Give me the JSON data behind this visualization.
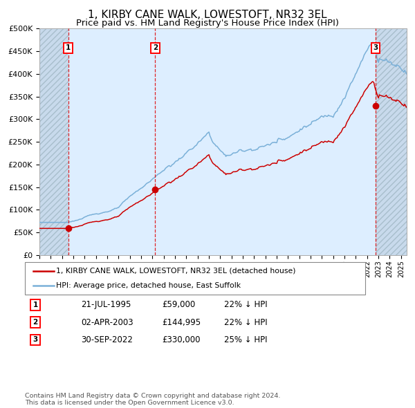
{
  "title": "1, KIRBY CANE WALK, LOWESTOFT, NR32 3EL",
  "subtitle": "Price paid vs. HM Land Registry's House Price Index (HPI)",
  "title_fontsize": 11,
  "subtitle_fontsize": 9.5,
  "purchases": [
    {
      "date_num": 1995.55,
      "price": 59000,
      "label": "1",
      "date_str": "21-JUL-1995",
      "pct": "22%",
      "dir": "↓"
    },
    {
      "date_num": 2003.25,
      "price": 144995,
      "label": "2",
      "date_str": "02-APR-2003",
      "pct": "22%",
      "dir": "↓"
    },
    {
      "date_num": 2022.75,
      "price": 330000,
      "label": "3",
      "date_str": "30-SEP-2022",
      "pct": "25%",
      "dir": "↓"
    }
  ],
  "legend_line1": "1, KIRBY CANE WALK, LOWESTOFT, NR32 3EL (detached house)",
  "legend_line2": "HPI: Average price, detached house, East Suffolk",
  "footer": "Contains HM Land Registry data © Crown copyright and database right 2024.\nThis data is licensed under the Open Government Licence v3.0.",
  "hpi_color": "#7ab0d8",
  "price_color": "#cc0000",
  "background_plot": "#ddeeff",
  "ylim": [
    0,
    500000
  ],
  "xlim_start": 1993.0,
  "xlim_end": 2025.5
}
